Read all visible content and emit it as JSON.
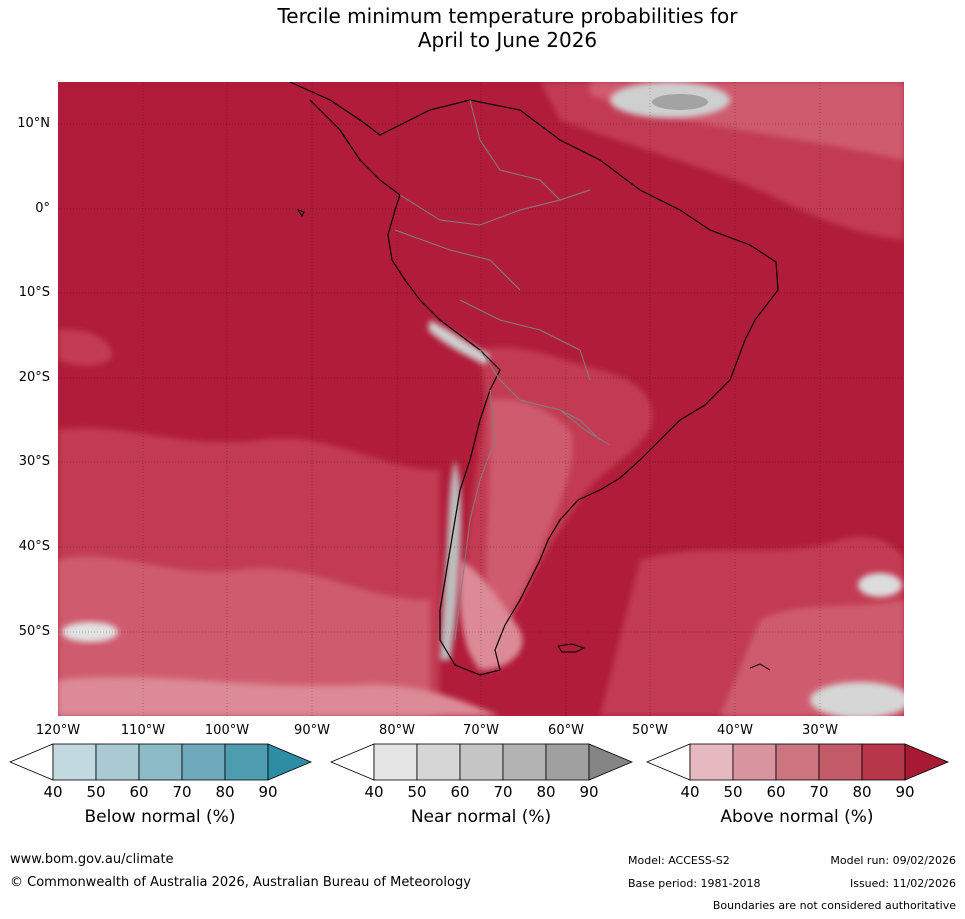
{
  "title": {
    "line1": "Tercile minimum temperature probabilities for",
    "line2": "April to June 2026"
  },
  "map": {
    "region": "South America",
    "lat_labels": [
      "10°N",
      "0°",
      "10°S",
      "20°S",
      "30°S",
      "40°S",
      "50°S"
    ],
    "lon_labels": [
      "120°W",
      "110°W",
      "100°W",
      "90°W",
      "80°W",
      "70°W",
      "60°W",
      "50°W",
      "40°W",
      "30°W"
    ],
    "colors": {
      "above_90": "#b01c39",
      "above_80": "#c23b53",
      "above_70": "#cf5c6e",
      "above_60": "#dc8a96",
      "above_50": "#e8b7bd",
      "near_60": "#cfcfcf",
      "near_70": "#bdbdbd",
      "near_80": "#a3a3a3",
      "coast": "#000000",
      "border": "#808080"
    }
  },
  "colorbars": [
    {
      "label": "Below normal (%)",
      "ticks": [
        "40",
        "50",
        "60",
        "70",
        "80",
        "90"
      ],
      "colors": [
        "#c2d9df",
        "#a9cad3",
        "#8cbac6",
        "#6eaabb",
        "#4e9caf",
        "#2c8da4"
      ]
    },
    {
      "label": "Near normal (%)",
      "ticks": [
        "40",
        "50",
        "60",
        "70",
        "80",
        "90"
      ],
      "colors": [
        "#e5e5e5",
        "#d6d6d6",
        "#c5c5c5",
        "#b3b3b3",
        "#a0a0a0",
        "#858585"
      ]
    },
    {
      "label": "Above normal (%)",
      "ticks": [
        "40",
        "50",
        "60",
        "70",
        "80",
        "90"
      ],
      "colors": [
        "#e6b8bf",
        "#d9959f",
        "#cc7480",
        "#c25a67",
        "#b83649",
        "#a81a34"
      ]
    }
  ],
  "footer": {
    "website": "www.bom.gov.au/climate",
    "copyright": "© Commonwealth of Australia 2026, Australian Bureau of Meteorology",
    "model": "Model: ACCESS-S2",
    "model_run": "Model run: 09/02/2026",
    "base_period": "Base period: 1981-2018",
    "issued": "Issued: 11/02/2026",
    "disclaimer": "Boundaries are not considered authoritative"
  }
}
